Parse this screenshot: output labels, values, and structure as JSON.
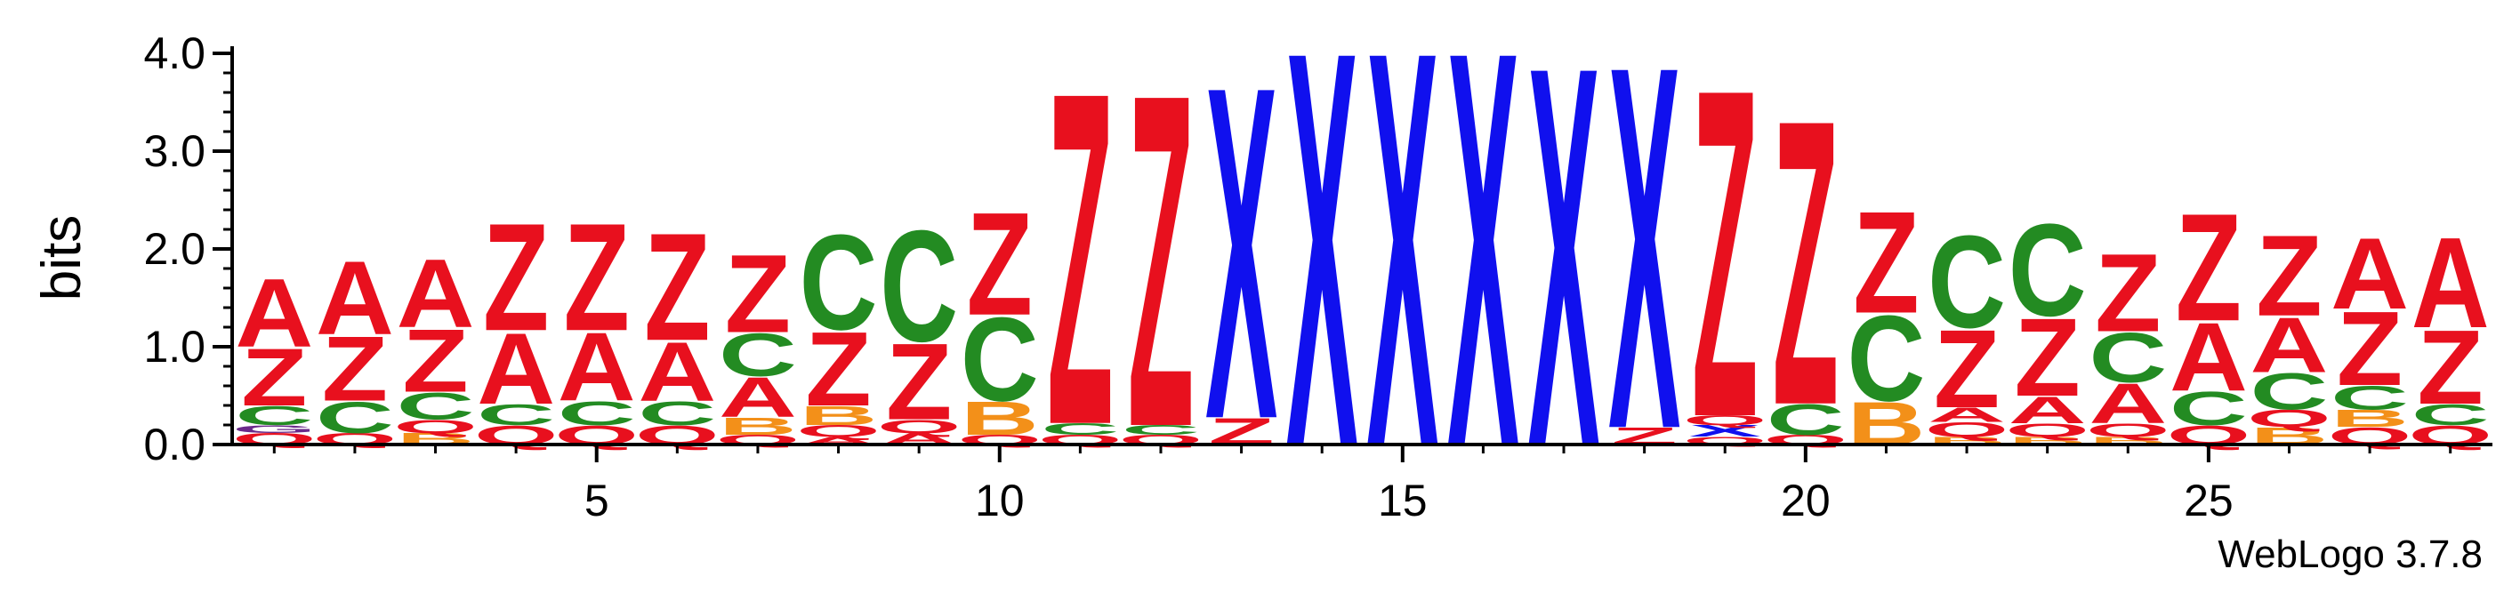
{
  "credit": "WebLogo 3.7.8",
  "colors": {
    "A": "#e8101e",
    "Z": "#e8101e",
    "Q": "#e8101e",
    "C": "#238b22",
    "B": "#f39019",
    "X": "#1010ee",
    "G": "#6a2a8a",
    "axis": "#000000"
  },
  "chart_data": {
    "type": "sequence-logo",
    "ylabel": "bits",
    "ylim": [
      0,
      4
    ],
    "y_ticks": [
      {
        "value": 0,
        "label": "0.0"
      },
      {
        "value": 1,
        "label": "1.0"
      },
      {
        "value": 2,
        "label": "2.0"
      },
      {
        "value": 3,
        "label": "3.0"
      },
      {
        "value": 4,
        "label": "4.0"
      }
    ],
    "x_ticks": [
      {
        "value": 5,
        "label": "5"
      },
      {
        "value": 10,
        "label": "10"
      },
      {
        "value": 15,
        "label": "15"
      },
      {
        "value": 20,
        "label": "20"
      },
      {
        "value": 25,
        "label": "25"
      }
    ],
    "xlim": [
      0.5,
      28.5
    ],
    "positions": [
      {
        "pos": 1,
        "stack": [
          {
            "l": "Q",
            "h": 0.12
          },
          {
            "l": "G",
            "h": 0.08
          },
          {
            "l": "C",
            "h": 0.2
          },
          {
            "l": "Z",
            "h": 0.6
          },
          {
            "l": "A",
            "h": 0.72
          }
        ]
      },
      {
        "pos": 2,
        "stack": [
          {
            "l": "Q",
            "h": 0.12
          },
          {
            "l": "C",
            "h": 0.33
          },
          {
            "l": "Z",
            "h": 0.68
          },
          {
            "l": "A",
            "h": 0.77
          }
        ]
      },
      {
        "pos": 3,
        "stack": [
          {
            "l": "B",
            "h": 0.12
          },
          {
            "l": "Q",
            "h": 0.14
          },
          {
            "l": "C",
            "h": 0.28
          },
          {
            "l": "Z",
            "h": 0.66
          },
          {
            "l": "A",
            "h": 0.72
          }
        ]
      },
      {
        "pos": 4,
        "stack": [
          {
            "l": "Q",
            "h": 0.2
          },
          {
            "l": "C",
            "h": 0.22
          },
          {
            "l": "A",
            "h": 0.75
          },
          {
            "l": "Z",
            "h": 1.13
          }
        ]
      },
      {
        "pos": 5,
        "stack": [
          {
            "l": "Q",
            "h": 0.2
          },
          {
            "l": "C",
            "h": 0.25
          },
          {
            "l": "A",
            "h": 0.72
          },
          {
            "l": "Z",
            "h": 1.13
          }
        ]
      },
      {
        "pos": 6,
        "stack": [
          {
            "l": "Q",
            "h": 0.2
          },
          {
            "l": "C",
            "h": 0.25
          },
          {
            "l": "A",
            "h": 0.62
          },
          {
            "l": "Z",
            "h": 1.13
          }
        ]
      },
      {
        "pos": 7,
        "stack": [
          {
            "l": "Q",
            "h": 0.1
          },
          {
            "l": "B",
            "h": 0.18
          },
          {
            "l": "A",
            "h": 0.42
          },
          {
            "l": "C",
            "h": 0.45
          },
          {
            "l": "Z",
            "h": 0.82
          }
        ]
      },
      {
        "pos": 8,
        "stack": [
          {
            "l": "A",
            "h": 0.08
          },
          {
            "l": "Q",
            "h": 0.12
          },
          {
            "l": "B",
            "h": 0.2
          },
          {
            "l": "Z",
            "h": 0.78
          },
          {
            "l": "C",
            "h": 1.0
          }
        ]
      },
      {
        "pos": 9,
        "stack": [
          {
            "l": "A",
            "h": 0.12
          },
          {
            "l": "Q",
            "h": 0.14
          },
          {
            "l": "Z",
            "h": 0.8
          },
          {
            "l": "C",
            "h": 1.17
          }
        ]
      },
      {
        "pos": 10,
        "stack": [
          {
            "l": "Q",
            "h": 0.1
          },
          {
            "l": "B",
            "h": 0.35
          },
          {
            "l": "C",
            "h": 0.88
          },
          {
            "l": "Z",
            "h": 1.08
          }
        ]
      },
      {
        "pos": 11,
        "stack": [
          {
            "l": "Q",
            "h": 0.1
          },
          {
            "l": "C",
            "h": 0.12
          },
          {
            "l": "Z",
            "h": 3.5
          }
        ]
      },
      {
        "pos": 12,
        "stack": [
          {
            "l": "Q",
            "h": 0.1
          },
          {
            "l": "C",
            "h": 0.1
          },
          {
            "l": "Z",
            "h": 3.5
          }
        ]
      },
      {
        "pos": 13,
        "stack": [
          {
            "l": "Z",
            "h": 0.28
          },
          {
            "l": "X",
            "h": 3.5
          }
        ]
      },
      {
        "pos": 14,
        "stack": [
          {
            "l": "X",
            "h": 4.16
          }
        ]
      },
      {
        "pos": 15,
        "stack": [
          {
            "l": "X",
            "h": 4.16
          }
        ]
      },
      {
        "pos": 16,
        "stack": [
          {
            "l": "X",
            "h": 4.16
          }
        ]
      },
      {
        "pos": 17,
        "stack": [
          {
            "l": "X",
            "h": 4.0
          }
        ]
      },
      {
        "pos": 18,
        "stack": [
          {
            "l": "Z",
            "h": 0.18
          },
          {
            "l": "X",
            "h": 3.82
          }
        ]
      },
      {
        "pos": 19,
        "stack": [
          {
            "l": "Q",
            "h": 0.08
          },
          {
            "l": "X",
            "h": 0.12
          },
          {
            "l": "Q",
            "h": 0.1
          },
          {
            "l": "Z",
            "h": 3.45
          }
        ]
      },
      {
        "pos": 20,
        "stack": [
          {
            "l": "Q",
            "h": 0.1
          },
          {
            "l": "C",
            "h": 0.32
          },
          {
            "l": "Z",
            "h": 3.0
          }
        ]
      },
      {
        "pos": 21,
        "stack": [
          {
            "l": "B",
            "h": 0.45
          },
          {
            "l": "C",
            "h": 0.9
          },
          {
            "l": "Z",
            "h": 1.07
          }
        ]
      },
      {
        "pos": 22,
        "stack": [
          {
            "l": "B",
            "h": 0.08
          },
          {
            "l": "Q",
            "h": 0.15
          },
          {
            "l": "A",
            "h": 0.15
          },
          {
            "l": "Z",
            "h": 0.82
          },
          {
            "l": "C",
            "h": 0.97
          }
        ]
      },
      {
        "pos": 23,
        "stack": [
          {
            "l": "B",
            "h": 0.08
          },
          {
            "l": "Q",
            "h": 0.14
          },
          {
            "l": "A",
            "h": 0.28
          },
          {
            "l": "Z",
            "h": 0.82
          },
          {
            "l": "C",
            "h": 0.97
          }
        ]
      },
      {
        "pos": 24,
        "stack": [
          {
            "l": "B",
            "h": 0.08
          },
          {
            "l": "Q",
            "h": 0.14
          },
          {
            "l": "A",
            "h": 0.42
          },
          {
            "l": "C",
            "h": 0.52
          },
          {
            "l": "Z",
            "h": 0.82
          }
        ]
      },
      {
        "pos": 25,
        "stack": [
          {
            "l": "Q",
            "h": 0.2
          },
          {
            "l": "C",
            "h": 0.35
          },
          {
            "l": "A",
            "h": 0.72
          },
          {
            "l": "Z",
            "h": 1.13
          }
        ]
      },
      {
        "pos": 26,
        "stack": [
          {
            "l": "B",
            "h": 0.18
          },
          {
            "l": "Q",
            "h": 0.18
          },
          {
            "l": "C",
            "h": 0.38
          },
          {
            "l": "A",
            "h": 0.58
          },
          {
            "l": "Z",
            "h": 0.85
          }
        ]
      },
      {
        "pos": 27,
        "stack": [
          {
            "l": "Q",
            "h": 0.18
          },
          {
            "l": "B",
            "h": 0.18
          },
          {
            "l": "C",
            "h": 0.25
          },
          {
            "l": "Z",
            "h": 0.78
          },
          {
            "l": "A",
            "h": 0.75
          }
        ]
      },
      {
        "pos": 28,
        "stack": [
          {
            "l": "Q",
            "h": 0.2
          },
          {
            "l": "C",
            "h": 0.22
          },
          {
            "l": "Z",
            "h": 0.78
          },
          {
            "l": "A",
            "h": 0.95
          }
        ]
      }
    ]
  }
}
